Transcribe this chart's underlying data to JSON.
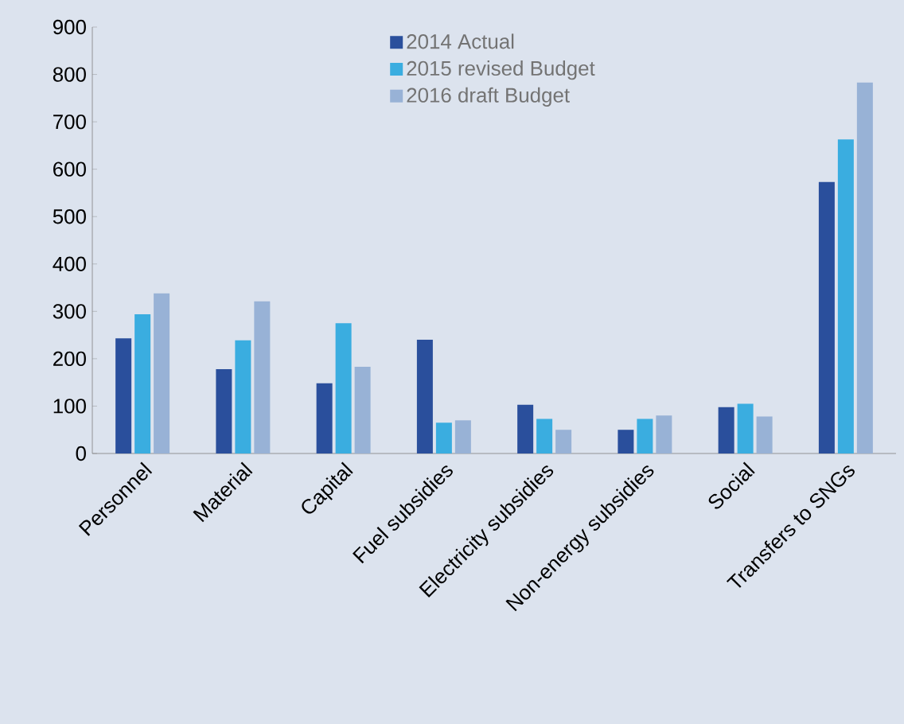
{
  "chart_data": {
    "type": "bar",
    "categories": [
      "Personnel",
      "Material",
      "Capital",
      "Fuel subsidies",
      "Electricity subsidies",
      "Non-energy subsidies",
      "Social",
      "Transfers to SNGs"
    ],
    "series": [
      {
        "name": "2014 Actual",
        "color": "#2a4f9c",
        "values": [
          243,
          178,
          148,
          240,
          103,
          50,
          98,
          573
        ]
      },
      {
        "name": "2015 revised Budget",
        "color": "#3aade0",
        "values": [
          294,
          239,
          275,
          65,
          73,
          73,
          105,
          663
        ]
      },
      {
        "name": "2016 draft Budget",
        "color": "#98b2d6",
        "values": [
          338,
          321,
          183,
          70,
          50,
          80,
          78,
          783
        ]
      }
    ],
    "ylim": [
      0,
      900
    ],
    "yticks": [
      0,
      100,
      200,
      300,
      400,
      500,
      600,
      700,
      800,
      900
    ],
    "grid": false,
    "legend": "top"
  }
}
